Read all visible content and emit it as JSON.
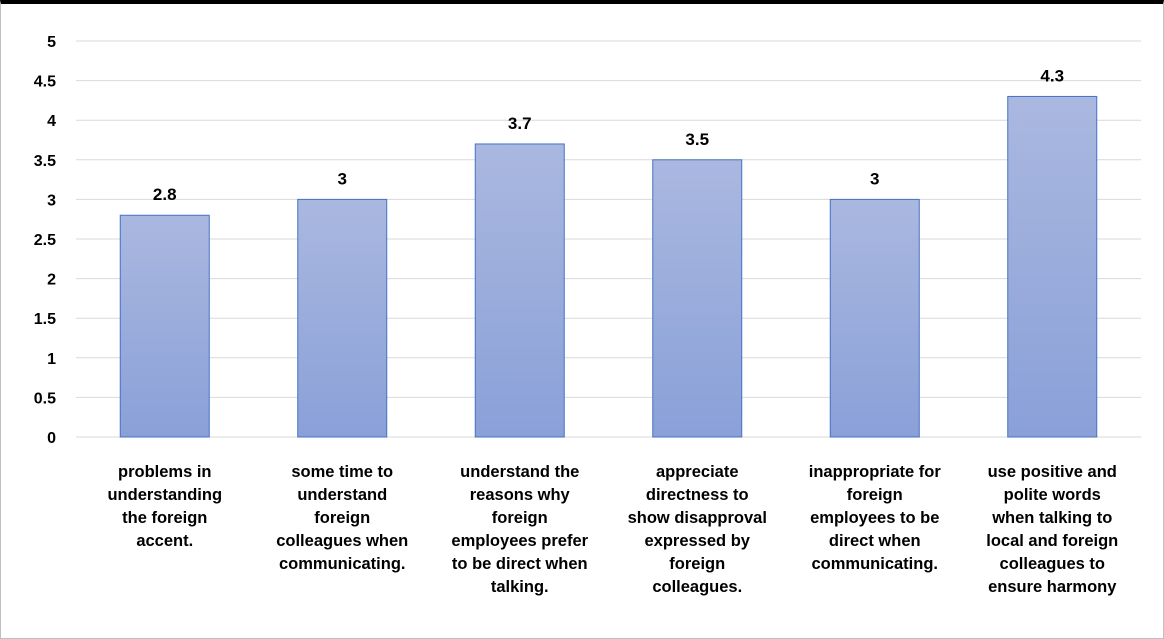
{
  "chart_data": {
    "type": "bar",
    "title": "",
    "xlabel": "",
    "ylabel": "",
    "ylim": [
      0,
      5
    ],
    "yticks": [
      "0",
      "0.5",
      "1",
      "1.5",
      "2",
      "2.5",
      "3",
      "3.5",
      "4",
      "4.5",
      "5"
    ],
    "grid": true,
    "legend": "none",
    "categories": [
      [
        "problems in",
        "understanding",
        "the foreign",
        "accent."
      ],
      [
        "some time to",
        "understand",
        "foreign",
        "colleagues when",
        "communicating."
      ],
      [
        "understand the",
        "reasons why",
        "foreign",
        "employees prefer",
        "to be direct when",
        "talking."
      ],
      [
        "appreciate",
        "directness to",
        "show disapproval",
        "expressed by",
        "foreign",
        "colleagues."
      ],
      [
        "inappropriate for",
        "foreign",
        "employees to be",
        "direct when",
        "communicating."
      ],
      [
        "use positive and",
        "polite words",
        "when talking to",
        "local and foreign",
        "colleagues to",
        "ensure harmony"
      ]
    ],
    "values": [
      2.8,
      3,
      3.7,
      3.5,
      3,
      4.3
    ],
    "data_labels": [
      "2.8",
      "3",
      "3.7",
      "3.5",
      "3",
      "4.3"
    ],
    "colors": {
      "bar_top": "#aab8e0",
      "bar_bottom": "#8aa0d8",
      "bar_border": "#4472c4",
      "grid": "#d9d9d9",
      "text": "#000000"
    }
  }
}
